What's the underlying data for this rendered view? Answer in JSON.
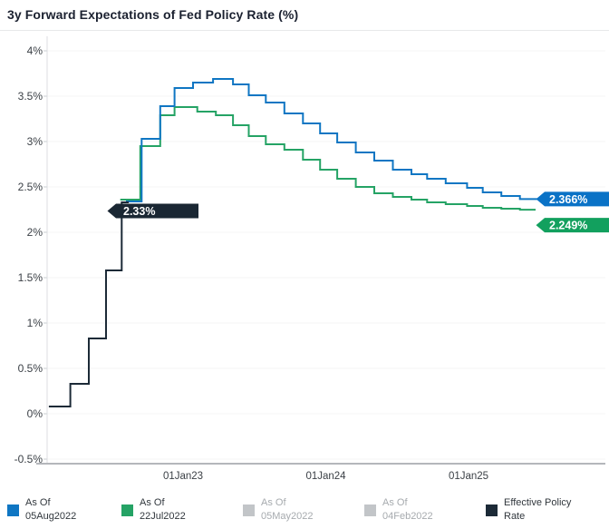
{
  "title": "3y Forward Expectations of Fed Policy Rate (%)",
  "colors": {
    "blue": "#0f76c3",
    "blue_box": "#0a72c6",
    "green": "#25a365",
    "green_box": "#12a05e",
    "dark": "#1c2a37",
    "dark_box": "#1a2733",
    "inactive_gray": "#c2c5c8",
    "axis_text": "#3b4046",
    "grid": "#f4f5f6",
    "axis_line": "#b4b7bb",
    "spine": "#dcdee1",
    "tick": "#c9ccd0",
    "label_text": "#ffffff"
  },
  "chart_data": {
    "type": "line",
    "step": true,
    "title": "3y Forward Expectations of Fed Policy Rate (%)",
    "xlabel": "",
    "ylabel": "",
    "grid": "faint-horizontal",
    "legend_position": "bottom",
    "x_axis": {
      "range": [
        2022.04,
        2025.52
      ],
      "ticks": [
        {
          "t": 2023.0,
          "label": "01Jan23"
        },
        {
          "t": 2024.0,
          "label": "01Jan24"
        },
        {
          "t": 2025.0,
          "label": "01Jan25"
        }
      ]
    },
    "y_axis": {
      "range": [
        -0.5,
        4.0
      ],
      "unit": "%",
      "tick_values": [
        4,
        3.5,
        3,
        2.5,
        2,
        1.5,
        1,
        0.5,
        0,
        -0.5
      ],
      "tick_labels": [
        "4%",
        "3.5%",
        "3%",
        "2.5%",
        "2%",
        "1.5%",
        "1%",
        "0.5%",
        "0%",
        "-0.5%"
      ]
    },
    "series": [
      {
        "name": "As Of 05Aug2022",
        "color_key": "blue",
        "visible": true,
        "end_label": "2.366%",
        "points": [
          [
            2022.6,
            2.34
          ],
          [
            2022.71,
            3.03
          ],
          [
            2022.84,
            3.39
          ],
          [
            2022.94,
            3.59
          ],
          [
            2023.07,
            3.65
          ],
          [
            2023.21,
            3.69
          ],
          [
            2023.35,
            3.63
          ],
          [
            2023.46,
            3.51
          ],
          [
            2023.58,
            3.43
          ],
          [
            2023.71,
            3.31
          ],
          [
            2023.84,
            3.2
          ],
          [
            2023.96,
            3.09
          ],
          [
            2024.08,
            2.99
          ],
          [
            2024.21,
            2.88
          ],
          [
            2024.34,
            2.79
          ],
          [
            2024.47,
            2.69
          ],
          [
            2024.6,
            2.64
          ],
          [
            2024.71,
            2.59
          ],
          [
            2024.84,
            2.54
          ],
          [
            2024.99,
            2.49
          ],
          [
            2025.1,
            2.44
          ],
          [
            2025.23,
            2.4
          ],
          [
            2025.36,
            2.366
          ],
          [
            2025.48,
            2.366
          ]
        ]
      },
      {
        "name": "As Of 22Jul2022",
        "color_key": "green",
        "visible": true,
        "end_label": "2.249%",
        "points": [
          [
            2022.56,
            2.36
          ],
          [
            2022.7,
            2.95
          ],
          [
            2022.84,
            3.29
          ],
          [
            2022.94,
            3.38
          ],
          [
            2023.1,
            3.33
          ],
          [
            2023.23,
            3.29
          ],
          [
            2023.35,
            3.18
          ],
          [
            2023.46,
            3.06
          ],
          [
            2023.58,
            2.97
          ],
          [
            2023.71,
            2.91
          ],
          [
            2023.84,
            2.8
          ],
          [
            2023.96,
            2.69
          ],
          [
            2024.08,
            2.59
          ],
          [
            2024.21,
            2.5
          ],
          [
            2024.34,
            2.43
          ],
          [
            2024.47,
            2.39
          ],
          [
            2024.6,
            2.36
          ],
          [
            2024.71,
            2.33
          ],
          [
            2024.84,
            2.31
          ],
          [
            2024.99,
            2.29
          ],
          [
            2025.1,
            2.27
          ],
          [
            2025.23,
            2.26
          ],
          [
            2025.36,
            2.249
          ],
          [
            2025.47,
            2.249
          ]
        ]
      },
      {
        "name": "As Of 05May2022",
        "color_key": "inactive_gray",
        "visible": false,
        "points": []
      },
      {
        "name": "As Of 04Feb2022",
        "color_key": "inactive_gray",
        "visible": false,
        "points": []
      },
      {
        "name": "Effective Policy Rate",
        "color_key": "dark",
        "visible": true,
        "annotation": "2.33%",
        "points": [
          [
            2022.06,
            0.08
          ],
          [
            2022.21,
            0.33
          ],
          [
            2022.34,
            0.83
          ],
          [
            2022.46,
            1.58
          ],
          [
            2022.57,
            2.33
          ],
          [
            2022.62,
            2.33
          ]
        ]
      }
    ]
  },
  "legend": {
    "items": [
      {
        "line1": "As Of",
        "line2": "05Aug2022",
        "color_key": "blue",
        "active": true
      },
      {
        "line1": "As Of",
        "line2": "22Jul2022",
        "color_key": "green",
        "active": true
      },
      {
        "line1": "As Of",
        "line2": "05May2022",
        "color_key": "inactive_gray",
        "active": false
      },
      {
        "line1": "As Of",
        "line2": "04Feb2022",
        "color_key": "inactive_gray",
        "active": false
      },
      {
        "line1": "Effective Policy",
        "line2": "Rate",
        "color_key": "dark",
        "active": true
      }
    ]
  }
}
